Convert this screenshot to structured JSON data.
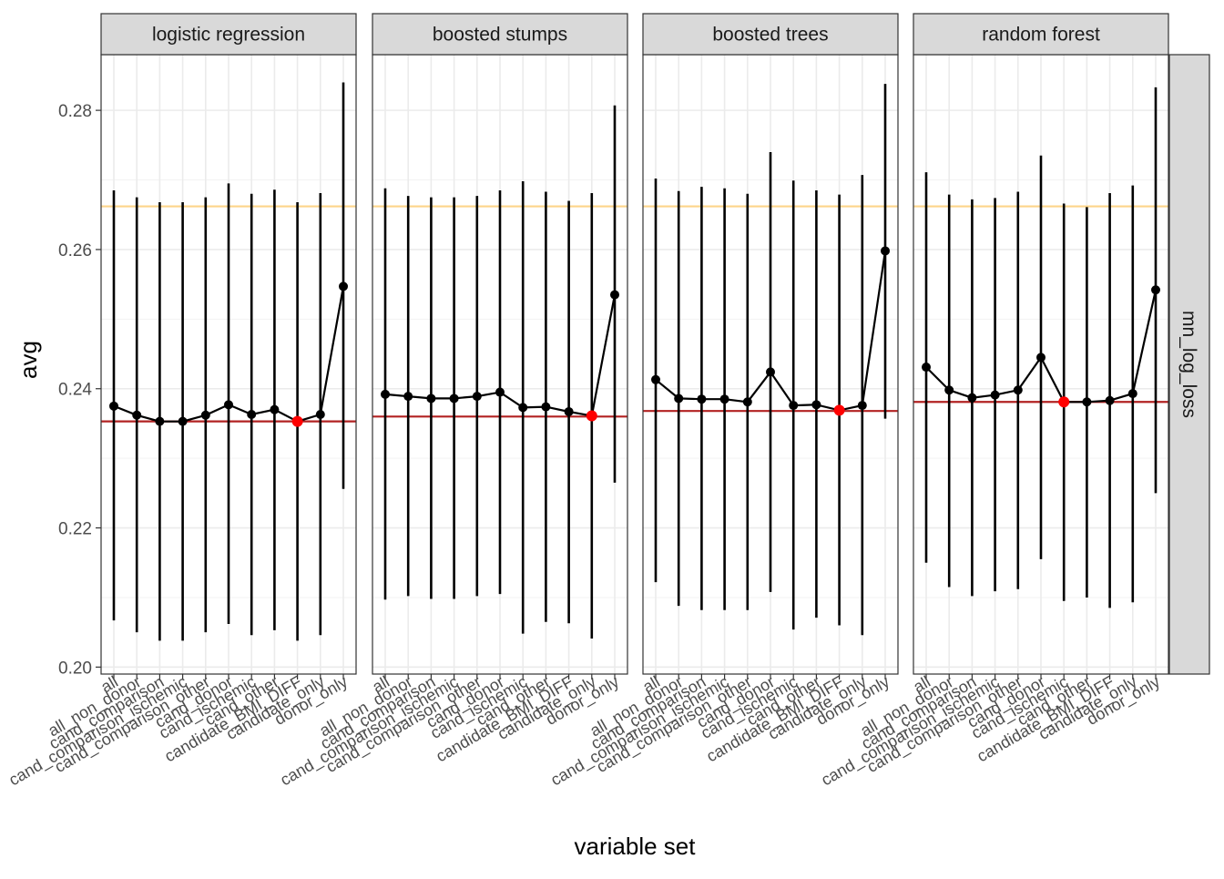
{
  "chart_data": {
    "type": "line",
    "facet_strip_right": "mn_log_loss",
    "xlabel": "variable set",
    "ylabel": "avg",
    "ylim": [
      0.199,
      0.288
    ],
    "yticks": [
      0.2,
      0.22,
      0.24,
      0.26,
      0.28
    ],
    "ytick_labels": [
      "0.20",
      "0.22",
      "0.24",
      "0.26",
      "0.28"
    ],
    "grid": true,
    "categories": [
      "all",
      "all_non_donor",
      "cand_comparison",
      "cand_comparison_ischemic",
      "cand_comparison_other",
      "cand_donor",
      "cand_ischemic",
      "cand_other",
      "candidate_BMI_DIFF",
      "candidate_only",
      "donor_only"
    ],
    "colors": {
      "series_line": "#000000",
      "point": "#000000",
      "best_point": "#ff0000",
      "reference_line_orange": "#fdd58a",
      "reference_line_red": "#b22222",
      "strip_fill": "#d9d9d9",
      "grid_major": "#ebebeb",
      "panel_border": "#333333"
    },
    "panels": [
      {
        "title": "logistic regression",
        "values": [
          0.2375,
          0.2362,
          0.2353,
          0.2353,
          0.2362,
          0.2377,
          0.2363,
          0.237,
          0.2353,
          0.2363,
          0.2547
        ],
        "lower": [
          0.2067,
          0.205,
          0.2038,
          0.2038,
          0.205,
          0.2062,
          0.2046,
          0.2053,
          0.2038,
          0.2046,
          0.2256
        ],
        "upper": [
          0.2685,
          0.2675,
          0.2668,
          0.2668,
          0.2675,
          0.2695,
          0.268,
          0.2686,
          0.2668,
          0.2681,
          0.284
        ],
        "best_index": 8,
        "ref_red": 0.2353,
        "ref_orange": 0.2662
      },
      {
        "title": "boosted stumps",
        "values": [
          0.2392,
          0.2389,
          0.2386,
          0.2386,
          0.2389,
          0.2395,
          0.2373,
          0.2374,
          0.2367,
          0.2361,
          0.2535
        ],
        "lower": [
          0.2097,
          0.2102,
          0.2098,
          0.2098,
          0.2102,
          0.2105,
          0.2048,
          0.2065,
          0.2063,
          0.2041,
          0.2265
        ],
        "upper": [
          0.2688,
          0.2677,
          0.2675,
          0.2675,
          0.2677,
          0.2685,
          0.2698,
          0.2683,
          0.267,
          0.2681,
          0.2807
        ],
        "best_index": 9,
        "ref_red": 0.236,
        "ref_orange": 0.2662
      },
      {
        "title": "boosted trees",
        "values": [
          0.2413,
          0.2386,
          0.2385,
          0.2385,
          0.2381,
          0.2424,
          0.2376,
          0.2377,
          0.2369,
          0.2376,
          0.2598
        ],
        "lower": [
          0.2122,
          0.2088,
          0.2082,
          0.2082,
          0.2082,
          0.2108,
          0.2054,
          0.2071,
          0.206,
          0.2046,
          0.2357
        ],
        "upper": [
          0.2702,
          0.2684,
          0.269,
          0.2688,
          0.268,
          0.274,
          0.2699,
          0.2685,
          0.2679,
          0.2707,
          0.2838
        ],
        "best_index": 8,
        "ref_red": 0.2368,
        "ref_orange": 0.2662
      },
      {
        "title": "random forest",
        "values": [
          0.2431,
          0.2398,
          0.2387,
          0.2391,
          0.2398,
          0.2445,
          0.2381,
          0.2381,
          0.2383,
          0.2393,
          0.2542
        ],
        "lower": [
          0.215,
          0.2115,
          0.2102,
          0.2109,
          0.2112,
          0.2155,
          0.2095,
          0.21,
          0.2085,
          0.2093,
          0.225
        ],
        "upper": [
          0.2711,
          0.2679,
          0.2672,
          0.2674,
          0.2683,
          0.2735,
          0.2666,
          0.2661,
          0.2681,
          0.2692,
          0.2833
        ],
        "best_index": 6,
        "ref_red": 0.2381,
        "ref_orange": 0.2662
      }
    ]
  }
}
